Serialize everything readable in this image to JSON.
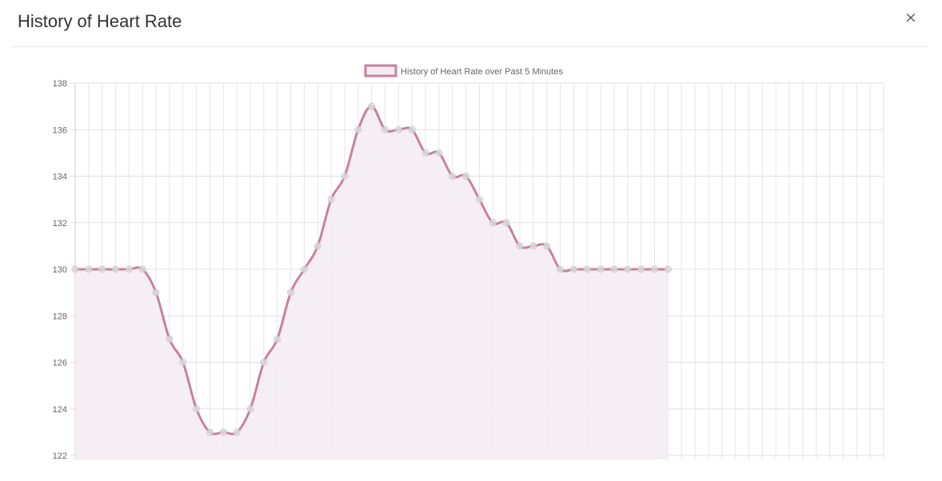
{
  "modal": {
    "title": "History of Heart Rate",
    "close_label": "×"
  },
  "chart_data": {
    "type": "line",
    "title": "",
    "xlabel": "",
    "ylabel": "",
    "ylim": [
      122,
      138
    ],
    "yticks": [
      "138",
      "136",
      "134",
      "132",
      "130",
      "128",
      "126",
      "124",
      "122"
    ],
    "grid": true,
    "legend_position": "top-center",
    "series": [
      {
        "name": "History of Heart Rate over Past 5 Minutes",
        "color": "#c9809e",
        "fill": "#f3ecf3",
        "values": [
          130,
          130,
          130,
          130,
          130,
          130,
          129,
          127,
          126,
          124,
          123,
          123,
          123,
          124,
          126,
          127,
          129,
          130,
          131,
          133,
          134,
          136,
          137,
          136,
          136,
          136,
          135,
          135,
          134,
          134,
          133,
          132,
          132,
          131,
          131,
          131,
          130,
          130,
          130,
          130,
          130,
          130,
          130,
          130,
          130
        ]
      }
    ],
    "x_slots": 60
  }
}
